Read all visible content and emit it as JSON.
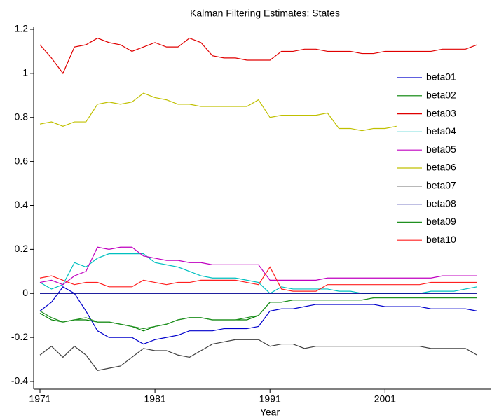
{
  "chart_data": {
    "type": "line",
    "title": "Kalman Filtering Estimates: States",
    "x_label": "Year",
    "x": [
      1971,
      1972,
      1973,
      1974,
      1975,
      1976,
      1977,
      1978,
      1979,
      1980,
      1981,
      1982,
      1983,
      1984,
      1985,
      1986,
      1987,
      1988,
      1989,
      1990,
      1991,
      1992,
      1993,
      1994,
      1995,
      1996,
      1997,
      1998,
      1999,
      2000,
      2001,
      2002,
      2003,
      2004,
      2005,
      2006,
      2007,
      2008,
      2009
    ],
    "xlim": [
      1971,
      2010
    ],
    "xticks": [
      1971,
      1981,
      1991,
      2001
    ],
    "ylim": [
      -0.4,
      1.2
    ],
    "yticks": [
      -0.4,
      -0.2,
      0,
      0.2,
      0.4,
      0.6,
      0.8,
      1,
      1.2
    ],
    "legend": "right",
    "zero_line": true,
    "series": [
      {
        "name": "beta01",
        "color": "#0000cc",
        "values": [
          -0.08,
          -0.04,
          0.03,
          0.0,
          -0.08,
          -0.17,
          -0.2,
          -0.2,
          -0.2,
          -0.23,
          -0.21,
          -0.2,
          -0.19,
          -0.17,
          -0.17,
          -0.17,
          -0.16,
          -0.16,
          -0.16,
          -0.15,
          -0.08,
          -0.07,
          -0.07,
          -0.06,
          -0.05,
          -0.05,
          -0.05,
          -0.05,
          -0.05,
          -0.05,
          -0.06,
          -0.06,
          -0.06,
          -0.06,
          -0.07,
          -0.07,
          -0.07,
          -0.07,
          -0.08
        ]
      },
      {
        "name": "beta02",
        "color": "#008000",
        "values": [
          -0.09,
          -0.12,
          -0.13,
          -0.12,
          -0.12,
          -0.13,
          -0.13,
          -0.14,
          -0.15,
          -0.17,
          -0.15,
          -0.14,
          -0.12,
          -0.11,
          -0.11,
          -0.12,
          -0.12,
          -0.12,
          -0.12,
          -0.1,
          -0.04,
          -0.04,
          -0.03,
          -0.03,
          -0.03,
          -0.03,
          -0.03,
          -0.03,
          -0.03,
          -0.02,
          -0.02,
          -0.02,
          -0.02,
          -0.02,
          -0.02,
          -0.02,
          -0.02,
          -0.02,
          -0.02
        ]
      },
      {
        "name": "beta03",
        "color": "#e00000",
        "values": [
          1.13,
          1.07,
          1.0,
          1.12,
          1.13,
          1.16,
          1.14,
          1.13,
          1.1,
          1.12,
          1.14,
          1.12,
          1.12,
          1.16,
          1.14,
          1.08,
          1.07,
          1.07,
          1.06,
          1.06,
          1.06,
          1.1,
          1.1,
          1.11,
          1.11,
          1.1,
          1.1,
          1.1,
          1.09,
          1.09,
          1.1,
          1.1,
          1.1,
          1.1,
          1.1,
          1.11,
          1.11,
          1.11,
          1.13
        ]
      },
      {
        "name": "beta04",
        "color": "#00c0c0",
        "values": [
          0.05,
          0.02,
          0.04,
          0.14,
          0.12,
          0.16,
          0.18,
          0.18,
          0.18,
          0.18,
          0.14,
          0.13,
          0.12,
          0.1,
          0.08,
          0.07,
          0.07,
          0.07,
          0.06,
          0.05,
          0.0,
          0.03,
          0.02,
          0.02,
          0.02,
          0.02,
          0.01,
          0.01,
          0.0,
          0.0,
          0.0,
          0.0,
          0.0,
          0.0,
          0.01,
          0.01,
          0.01,
          0.02,
          0.03
        ]
      },
      {
        "name": "beta05",
        "color": "#c000c0",
        "values": [
          0.05,
          0.06,
          0.04,
          0.08,
          0.1,
          0.21,
          0.2,
          0.21,
          0.21,
          0.17,
          0.16,
          0.15,
          0.15,
          0.14,
          0.14,
          0.13,
          0.13,
          0.13,
          0.13,
          0.13,
          0.06,
          0.06,
          0.06,
          0.06,
          0.06,
          0.07,
          0.07,
          0.07,
          0.07,
          0.07,
          0.07,
          0.07,
          0.07,
          0.07,
          0.07,
          0.08,
          0.08,
          0.08,
          0.08
        ]
      },
      {
        "name": "beta06",
        "color": "#c0c000",
        "values": [
          0.77,
          0.78,
          0.76,
          0.78,
          0.78,
          0.86,
          0.87,
          0.86,
          0.87,
          0.91,
          0.89,
          0.88,
          0.86,
          0.86,
          0.85,
          0.85,
          0.85,
          0.85,
          0.85,
          0.88,
          0.8,
          0.81,
          0.81,
          0.81,
          0.81,
          0.82,
          0.75,
          0.75,
          0.74,
          0.75,
          0.75,
          0.76,
          null,
          null,
          null,
          null,
          null,
          null,
          null
        ]
      },
      {
        "name": "beta07",
        "color": "#404040",
        "values": [
          -0.28,
          -0.24,
          -0.29,
          -0.24,
          -0.28,
          -0.35,
          -0.34,
          -0.33,
          -0.29,
          -0.25,
          -0.26,
          -0.26,
          -0.28,
          -0.29,
          -0.26,
          -0.23,
          -0.22,
          -0.21,
          -0.21,
          -0.21,
          -0.24,
          -0.23,
          -0.23,
          -0.25,
          -0.24,
          -0.24,
          -0.24,
          -0.24,
          -0.24,
          -0.24,
          -0.24,
          -0.24,
          -0.24,
          -0.24,
          -0.25,
          -0.25,
          -0.25,
          -0.25,
          -0.28
        ]
      },
      {
        "name": "beta08",
        "color": "#000090",
        "values": [
          0,
          0,
          0,
          0,
          0,
          0,
          0,
          0,
          0,
          0,
          0,
          0,
          0,
          0,
          0,
          0,
          0,
          0,
          0,
          0,
          0,
          0,
          0,
          0,
          0,
          0,
          0,
          0,
          0,
          0,
          0,
          0,
          0,
          0,
          0,
          0,
          0,
          0,
          0
        ]
      },
      {
        "name": "beta09",
        "color": "#209020",
        "values": [
          -0.08,
          -0.11,
          -0.13,
          -0.12,
          -0.11,
          -0.13,
          -0.13,
          -0.14,
          -0.15,
          -0.16,
          -0.15,
          -0.14,
          -0.12,
          -0.11,
          -0.11,
          -0.12,
          -0.12,
          -0.12,
          -0.11,
          -0.1,
          -0.04,
          -0.04,
          -0.03,
          -0.03,
          -0.03,
          -0.03,
          -0.03,
          -0.03,
          -0.03,
          -0.02,
          -0.02,
          -0.02,
          -0.02,
          -0.02,
          -0.02,
          -0.02,
          -0.02,
          -0.02,
          -0.02
        ]
      },
      {
        "name": "beta10",
        "color": "#ff2020",
        "values": [
          0.07,
          0.08,
          0.06,
          0.04,
          0.05,
          0.05,
          0.03,
          0.03,
          0.03,
          0.06,
          0.05,
          0.04,
          0.05,
          0.05,
          0.06,
          0.06,
          0.06,
          0.06,
          0.05,
          0.04,
          0.12,
          0.02,
          0.01,
          0.01,
          0.01,
          0.04,
          0.04,
          0.04,
          0.04,
          0.04,
          0.04,
          0.04,
          0.04,
          0.04,
          0.05,
          0.05,
          0.05,
          0.05,
          0.05
        ]
      }
    ]
  }
}
